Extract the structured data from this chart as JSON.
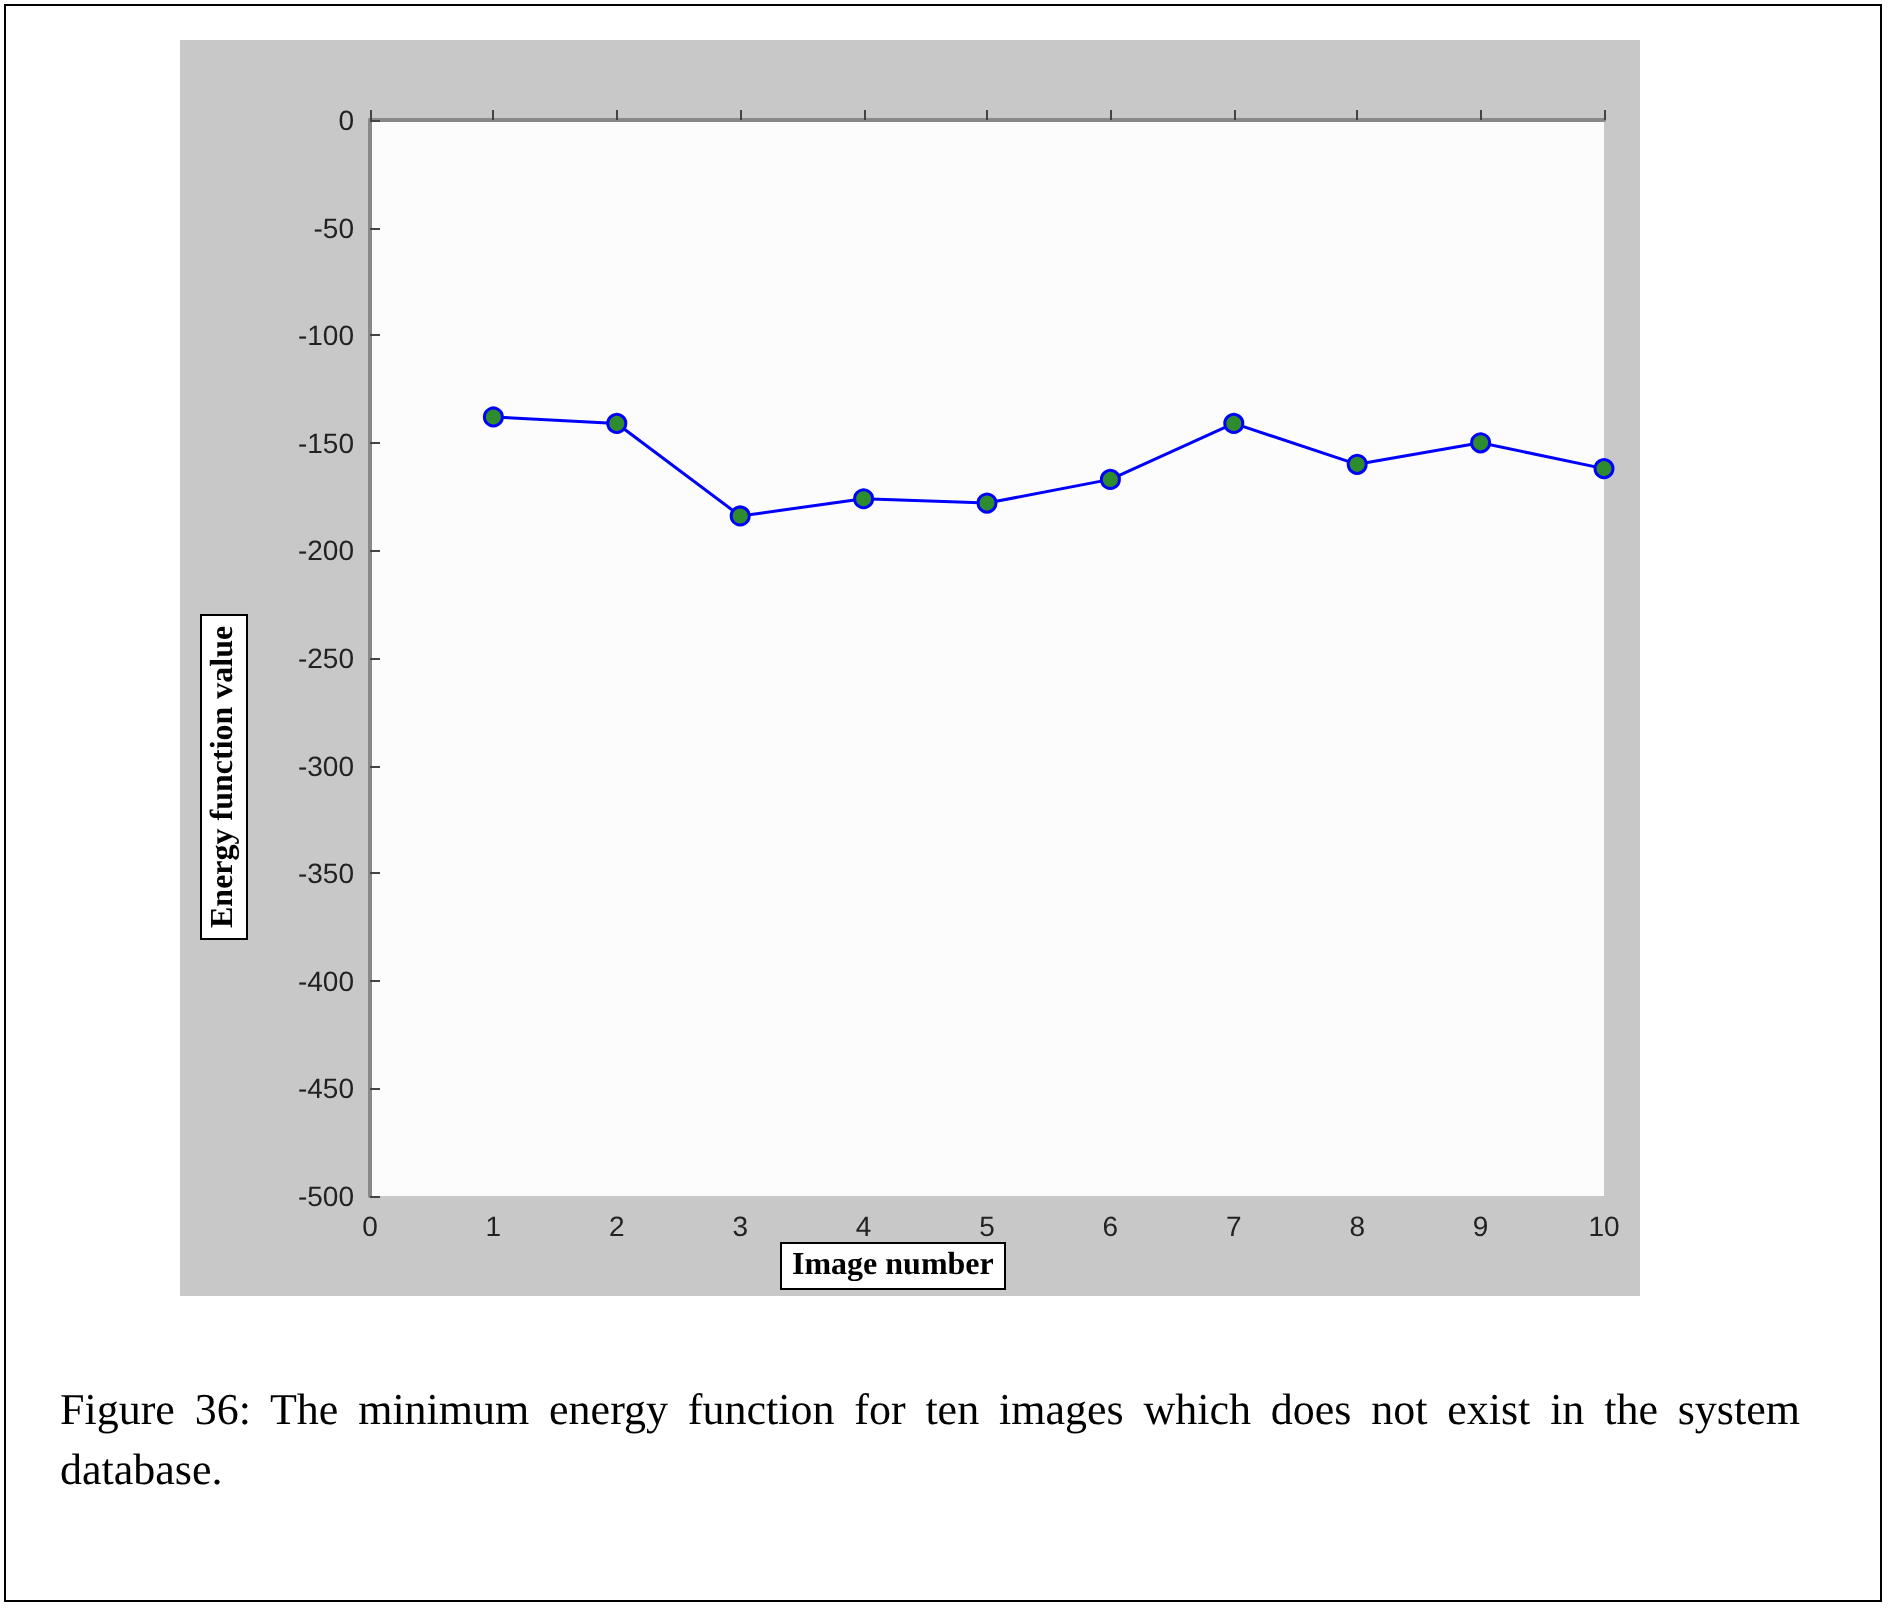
{
  "chart_data": {
    "type": "line",
    "xlabel": "Image number",
    "ylabel": "Energy function value",
    "annotations": [
      "Figure 36: The minimum energy function for ten images which does not exist in the system database."
    ],
    "x": [
      1,
      2,
      3,
      4,
      5,
      6,
      7,
      8,
      9,
      10
    ],
    "series": [
      {
        "color": "#0000ff",
        "values": [
          -138,
          -141,
          -184,
          -176,
          -178,
          -167,
          -141,
          -160,
          -150,
          -162
        ]
      }
    ],
    "xlim": [
      0,
      10
    ],
    "xticks": [
      0,
      1,
      2,
      3,
      4,
      5,
      6,
      7,
      8,
      9,
      10
    ],
    "ylim": [
      -500,
      0
    ],
    "yticks": [
      -500,
      -450,
      -400,
      -350,
      -300,
      -250,
      -200,
      -150,
      -100,
      -50,
      0
    ],
    "grid": false,
    "marker": "circle",
    "line_style": "solid"
  }
}
